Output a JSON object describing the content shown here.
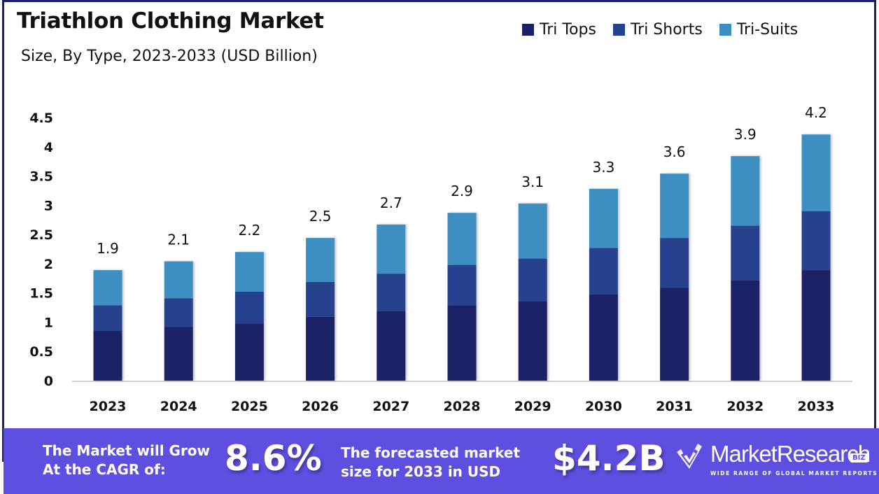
{
  "header": {
    "title": "Triathlon Clothing Market",
    "subtitle": "Size, By Type, 2023-2033 (USD Billion)"
  },
  "legend": [
    {
      "label": "Tri Tops",
      "color": "#1a2066"
    },
    {
      "label": "Tri Shorts",
      "color": "#25428f"
    },
    {
      "label": "Tri-Suits",
      "color": "#3d8fc2"
    }
  ],
  "chart_data": {
    "type": "bar",
    "stacked": true,
    "title": "Triathlon Clothing Market",
    "subtitle": "Size, By Type, 2023-2033 (USD Billion)",
    "xlabel": "",
    "ylabel": "",
    "ylim": [
      0,
      4.5
    ],
    "yticks": [
      "0",
      "0.5",
      "1",
      "1.5",
      "2",
      "2.5",
      "3",
      "3.5",
      "4",
      "4.5"
    ],
    "ytick_values": [
      0,
      0.5,
      1,
      1.5,
      2,
      2.5,
      3,
      3.5,
      4,
      4.5
    ],
    "grid": false,
    "legend_position": "top-right",
    "categories": [
      "2023",
      "2024",
      "2025",
      "2026",
      "2027",
      "2028",
      "2029",
      "2030",
      "2031",
      "2032",
      "2033"
    ],
    "series": [
      {
        "name": "Tri Tops",
        "color": "#1a2066",
        "values": [
          0.85,
          0.92,
          0.98,
          1.09,
          1.19,
          1.29,
          1.36,
          1.48,
          1.59,
          1.72,
          1.89
        ]
      },
      {
        "name": "Tri Shorts",
        "color": "#25428f",
        "values": [
          0.44,
          0.49,
          0.54,
          0.6,
          0.64,
          0.69,
          0.73,
          0.79,
          0.85,
          0.93,
          1.01
        ]
      },
      {
        "name": "Tri-Suits",
        "color": "#3d8fc2",
        "values": [
          0.6,
          0.63,
          0.68,
          0.75,
          0.84,
          0.89,
          0.94,
          1.01,
          1.1,
          1.19,
          1.31
        ]
      }
    ],
    "totals": [
      1.9,
      2.1,
      2.2,
      2.5,
      2.7,
      2.9,
      3.1,
      3.3,
      3.6,
      3.9,
      4.2
    ],
    "total_labels": [
      "1.9",
      "2.1",
      "2.2",
      "2.5",
      "2.7",
      "2.9",
      "3.1",
      "3.3",
      "3.6",
      "3.9",
      "4.2"
    ]
  },
  "footer": {
    "cagr_text_line1": "The Market will Grow",
    "cagr_text_line2": "At the CAGR of:",
    "cagr_value": "8.6%",
    "forecast_text_line1": "The forecasted market",
    "forecast_text_line2": "size for 2033 in USD",
    "forecast_value": "$4.2B",
    "background_color": "#5f4fe0"
  },
  "logo": {
    "name": "MarketResearch",
    "badge": "BIZ",
    "tagline": "WIDE RANGE OF GLOBAL MARKET REPORTS"
  }
}
